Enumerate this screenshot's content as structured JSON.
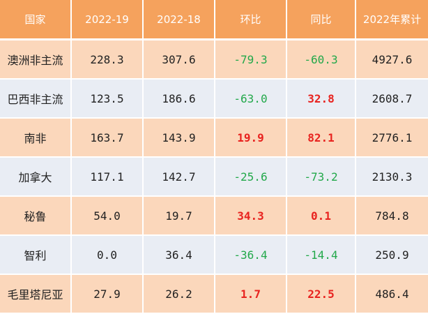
{
  "colors": {
    "header_bg": "#f5a25d",
    "row_odd_bg": "#fbd7bb",
    "row_even_bg": "#e9edf4",
    "positive_text": "#e8231f",
    "negative_text": "#22a84a"
  },
  "chart_data": {
    "type": "table",
    "columns": [
      "国家",
      "2022-19",
      "2022-18",
      "环比",
      "同比",
      "2022年累计"
    ],
    "rows": [
      [
        "澳洲非主流",
        "228.3",
        "307.6",
        "-79.3",
        "-60.3",
        "4927.6"
      ],
      [
        "巴西非主流",
        "123.5",
        "186.6",
        "-63.0",
        "32.8",
        "2608.7"
      ],
      [
        "南非",
        "163.7",
        "143.9",
        "19.9",
        "82.1",
        "2776.1"
      ],
      [
        "加拿大",
        "117.1",
        "142.7",
        "-25.6",
        "-73.2",
        "2130.3"
      ],
      [
        "秘鲁",
        "54.0",
        "19.7",
        "34.3",
        "0.1",
        "784.8"
      ],
      [
        "智利",
        "0.0",
        "36.4",
        "-36.4",
        "-14.4",
        "250.9"
      ],
      [
        "毛里塔尼亚",
        "27.9",
        "26.2",
        "1.7",
        "22.5",
        "486.4"
      ]
    ]
  }
}
